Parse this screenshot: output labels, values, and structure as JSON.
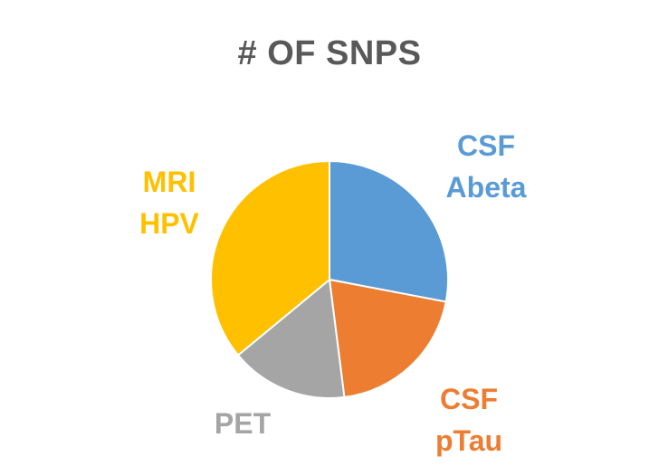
{
  "chart_data": {
    "type": "pie",
    "title": "# OF SNPS",
    "slices": [
      {
        "lines": [
          "CSF",
          "Abeta"
        ],
        "value": 28,
        "color": "#5B9BD5"
      },
      {
        "lines": [
          "CSF",
          "pTau"
        ],
        "value": 20,
        "color": "#ED7D31"
      },
      {
        "lines": [
          "PET"
        ],
        "value": 16,
        "color": "#A5A5A5"
      },
      {
        "lines": [
          "MRI",
          "HPV"
        ],
        "value": 36,
        "color": "#FFC000"
      }
    ]
  }
}
